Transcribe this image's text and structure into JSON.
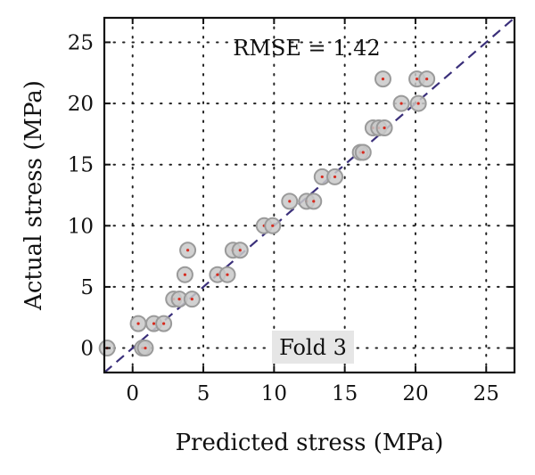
{
  "chart_data": {
    "type": "scatter",
    "xlabel": "Predicted stress (MPa)",
    "ylabel": "Actual stress (MPa)",
    "xlim": [
      -2,
      27
    ],
    "ylim": [
      -2,
      27
    ],
    "xticks": [
      0,
      5,
      10,
      15,
      20,
      25
    ],
    "yticks": [
      0,
      5,
      10,
      15,
      20,
      25
    ],
    "grid": true,
    "grid_style": "dotted",
    "reference_line": {
      "style": "dashed",
      "color": "#3a2f7a",
      "slope": 1,
      "intercept": 0
    },
    "annotation": "RMSE = 1.42",
    "fold_label": "Fold 3",
    "marker_face": "#c9c9c9",
    "marker_edge": "#9a9a9a",
    "marker_center": "#d62b1f",
    "points": [
      {
        "x": -1.8,
        "y": 0
      },
      {
        "x": 0.7,
        "y": 0
      },
      {
        "x": 0.9,
        "y": 0
      },
      {
        "x": 0.4,
        "y": 2
      },
      {
        "x": 1.5,
        "y": 2
      },
      {
        "x": 2.2,
        "y": 2
      },
      {
        "x": 2.9,
        "y": 4
      },
      {
        "x": 3.3,
        "y": 4
      },
      {
        "x": 4.2,
        "y": 4
      },
      {
        "x": 3.7,
        "y": 6
      },
      {
        "x": 3.9,
        "y": 8
      },
      {
        "x": 6.0,
        "y": 6
      },
      {
        "x": 6.7,
        "y": 6
      },
      {
        "x": 7.1,
        "y": 8
      },
      {
        "x": 7.6,
        "y": 8
      },
      {
        "x": 9.3,
        "y": 10
      },
      {
        "x": 9.9,
        "y": 10
      },
      {
        "x": 11.1,
        "y": 12
      },
      {
        "x": 12.3,
        "y": 12
      },
      {
        "x": 12.8,
        "y": 12
      },
      {
        "x": 13.4,
        "y": 14
      },
      {
        "x": 14.3,
        "y": 14
      },
      {
        "x": 16.1,
        "y": 16
      },
      {
        "x": 16.3,
        "y": 16
      },
      {
        "x": 17.0,
        "y": 18
      },
      {
        "x": 17.4,
        "y": 18
      },
      {
        "x": 17.8,
        "y": 18
      },
      {
        "x": 17.7,
        "y": 22
      },
      {
        "x": 19.0,
        "y": 20
      },
      {
        "x": 20.2,
        "y": 20
      },
      {
        "x": 20.1,
        "y": 22
      },
      {
        "x": 20.8,
        "y": 22
      }
    ]
  }
}
